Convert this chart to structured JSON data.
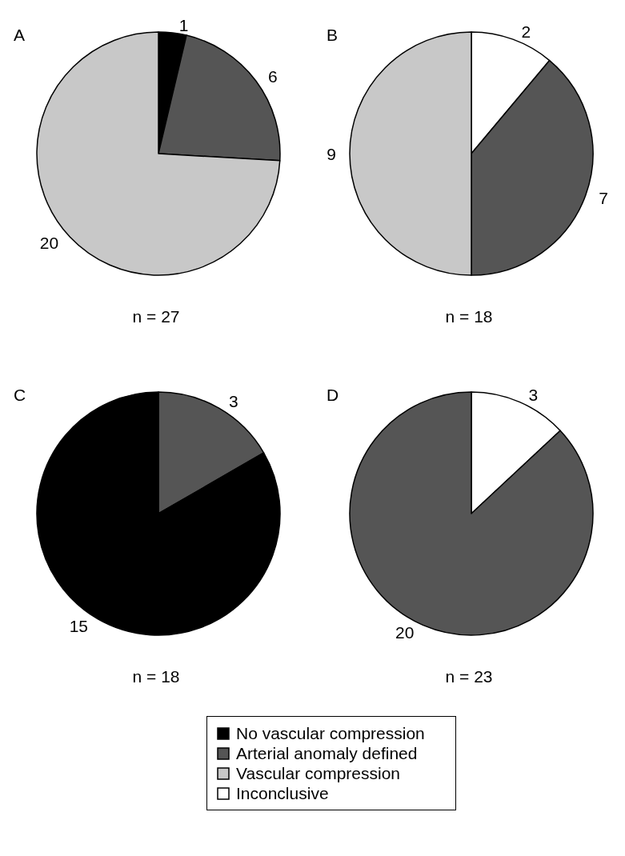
{
  "chart_data": [
    {
      "type": "pie",
      "title": "A",
      "categories": [
        "No vascular compression",
        "Arterial anomaly defined",
        "Vascular compression"
      ],
      "values": [
        1,
        6,
        20
      ],
      "colors": [
        "#000000",
        "#555555",
        "#c8c8c8"
      ],
      "data_labels": true,
      "legend": "bottom",
      "annotations": [
        "n = 27"
      ]
    },
    {
      "type": "pie",
      "title": "B",
      "categories": [
        "Inconclusive",
        null,
        null
      ],
      "values": [
        2,
        7,
        9
      ],
      "colors": [
        "#ffffff",
        "#555555",
        "#c8c8c8"
      ],
      "data_labels": true,
      "legend": "bottom",
      "annotations": [
        "n = 18"
      ]
    },
    {
      "type": "pie",
      "title": "C",
      "categories": [
        null,
        null
      ],
      "values": [
        3,
        15
      ],
      "colors": [
        "#555555",
        "#000000"
      ],
      "data_labels": true,
      "annotations": [
        "n = 18"
      ]
    },
    {
      "type": "pie",
      "title": "D",
      "categories": [
        null,
        null
      ],
      "values": [
        3,
        20
      ],
      "colors": [
        "#ffffff",
        "#555555"
      ],
      "data_labels": true,
      "annotations": [
        "n = 23"
      ]
    }
  ]
}
